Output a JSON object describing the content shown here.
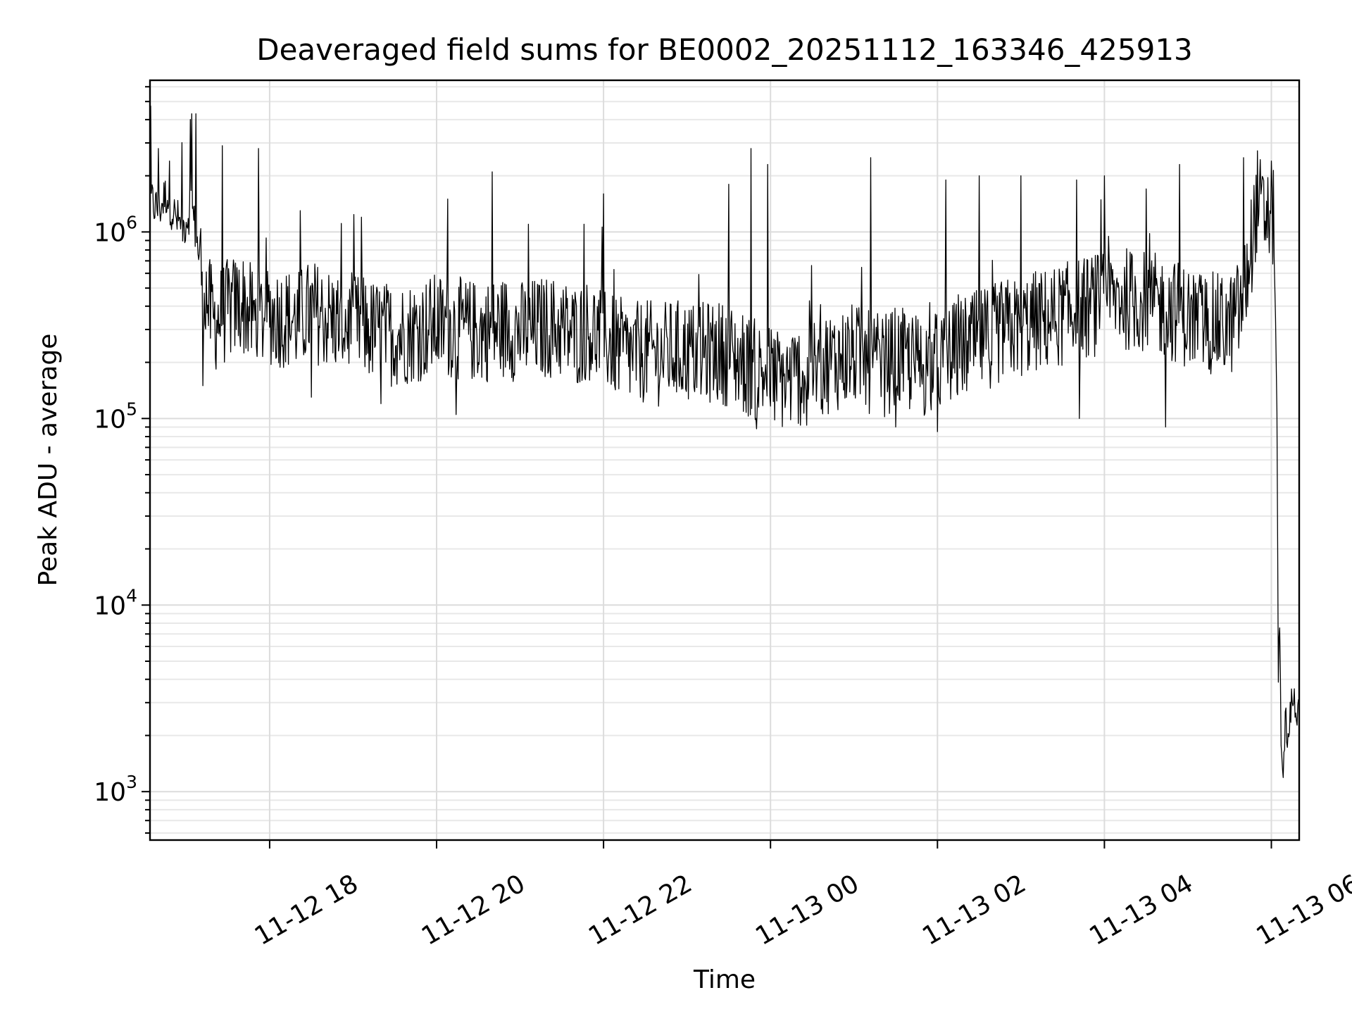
{
  "chart_data": {
    "type": "line",
    "title": "Deaveraged field sums for BE0002_20251112_163346_425913",
    "xlabel": "Time",
    "ylabel": "Peak ADU - average",
    "yscale": "log",
    "ylim": [
      550,
      6500000
    ],
    "xlim": [
      "2025-11-12 16:34",
      "2025-11-13 06:20"
    ],
    "grid": true,
    "x_ticks": [
      {
        "time": "2025-11-12 18:00",
        "label": "11-12 18"
      },
      {
        "time": "2025-11-12 20:00",
        "label": "11-12 20"
      },
      {
        "time": "2025-11-12 22:00",
        "label": "11-12 22"
      },
      {
        "time": "2025-11-13 00:00",
        "label": "11-13 00"
      },
      {
        "time": "2025-11-13 02:00",
        "label": "11-13 02"
      },
      {
        "time": "2025-11-13 04:00",
        "label": "11-13 04"
      },
      {
        "time": "2025-11-13 06:00",
        "label": "11-13 06"
      }
    ],
    "y_ticks": [
      {
        "value": 1000,
        "base": "10",
        "exp": "3"
      },
      {
        "value": 10000,
        "base": "10",
        "exp": "4"
      },
      {
        "value": 100000,
        "base": "10",
        "exp": "5"
      },
      {
        "value": 1000000,
        "base": "10",
        "exp": "6"
      }
    ],
    "series": [
      {
        "color": "#000000",
        "points": [
          [
            "2025-11-12 16:34",
            1500000
          ],
          [
            "2025-11-12 16:40",
            1300000
          ],
          [
            "2025-11-12 16:46",
            1600000
          ],
          [
            "2025-11-12 16:52",
            1200000
          ],
          [
            "2025-11-12 16:58",
            1050000
          ],
          [
            "2025-11-12 17:04",
            1400000
          ],
          [
            "2025-11-12 17:08",
            850000
          ],
          [
            "2025-11-12 17:12",
            600000
          ],
          [
            "2025-11-12 17:16",
            400000
          ],
          [
            "2025-11-12 17:20",
            330000
          ],
          [
            "2025-11-12 17:30",
            380000
          ],
          [
            "2025-11-12 17:40",
            420000
          ],
          [
            "2025-11-12 17:50",
            330000
          ],
          [
            "2025-11-12 18:00",
            360000
          ],
          [
            "2025-11-12 18:10",
            350000
          ],
          [
            "2025-11-12 18:20",
            330000
          ],
          [
            "2025-11-12 18:30",
            380000
          ],
          [
            "2025-11-12 18:40",
            350000
          ],
          [
            "2025-11-12 18:50",
            330000
          ],
          [
            "2025-11-12 19:00",
            320000
          ],
          [
            "2025-11-12 19:10",
            300000
          ],
          [
            "2025-11-12 19:20",
            290000
          ],
          [
            "2025-11-12 19:30",
            280000
          ],
          [
            "2025-11-12 19:40",
            290000
          ],
          [
            "2025-11-12 19:50",
            300000
          ],
          [
            "2025-11-12 20:00",
            320000
          ],
          [
            "2025-11-12 20:10",
            310000
          ],
          [
            "2025-11-12 20:20",
            300000
          ],
          [
            "2025-11-12 20:30",
            290000
          ],
          [
            "2025-11-12 20:40",
            300000
          ],
          [
            "2025-11-12 20:50",
            310000
          ],
          [
            "2025-11-12 21:00",
            290000
          ],
          [
            "2025-11-12 21:10",
            300000
          ],
          [
            "2025-11-12 21:20",
            310000
          ],
          [
            "2025-11-12 21:30",
            300000
          ],
          [
            "2025-11-12 21:40",
            280000
          ],
          [
            "2025-11-12 21:50",
            300000
          ],
          [
            "2025-11-12 22:00",
            270000
          ],
          [
            "2025-11-12 22:10",
            240000
          ],
          [
            "2025-11-12 22:20",
            220000
          ],
          [
            "2025-11-12 22:30",
            230000
          ],
          [
            "2025-11-12 22:40",
            220000
          ],
          [
            "2025-11-12 22:50",
            230000
          ],
          [
            "2025-11-12 23:00",
            230000
          ],
          [
            "2025-11-12 23:10",
            220000
          ],
          [
            "2025-11-12 23:20",
            230000
          ],
          [
            "2025-11-12 23:30",
            220000
          ],
          [
            "2025-11-12 23:40",
            200000
          ],
          [
            "2025-11-12 23:50",
            180000
          ],
          [
            "2025-11-13 00:00",
            170000
          ],
          [
            "2025-11-13 00:10",
            160000
          ],
          [
            "2025-11-13 00:20",
            170000
          ],
          [
            "2025-11-13 00:30",
            180000
          ],
          [
            "2025-11-13 00:40",
            200000
          ],
          [
            "2025-11-13 00:50",
            210000
          ],
          [
            "2025-11-13 01:00",
            220000
          ],
          [
            "2025-11-13 01:10",
            200000
          ],
          [
            "2025-11-13 01:20",
            190000
          ],
          [
            "2025-11-13 01:30",
            210000
          ],
          [
            "2025-11-13 01:40",
            200000
          ],
          [
            "2025-11-13 01:50",
            190000
          ],
          [
            "2025-11-13 02:00",
            200000
          ],
          [
            "2025-11-13 02:10",
            220000
          ],
          [
            "2025-11-13 02:20",
            240000
          ],
          [
            "2025-11-13 02:30",
            260000
          ],
          [
            "2025-11-13 02:40",
            280000
          ],
          [
            "2025-11-13 02:50",
            300000
          ],
          [
            "2025-11-13 03:00",
            310000
          ],
          [
            "2025-11-13 03:10",
            330000
          ],
          [
            "2025-11-13 03:20",
            340000
          ],
          [
            "2025-11-13 03:30",
            360000
          ],
          [
            "2025-11-13 03:40",
            380000
          ],
          [
            "2025-11-13 03:50",
            400000
          ],
          [
            "2025-11-13 04:00",
            420000
          ],
          [
            "2025-11-13 04:10",
            450000
          ],
          [
            "2025-11-13 04:20",
            430000
          ],
          [
            "2025-11-13 04:30",
            420000
          ],
          [
            "2025-11-13 04:40",
            400000
          ],
          [
            "2025-11-13 04:50",
            380000
          ],
          [
            "2025-11-13 05:00",
            350000
          ],
          [
            "2025-11-13 05:10",
            330000
          ],
          [
            "2025-11-13 05:20",
            320000
          ],
          [
            "2025-11-13 05:30",
            310000
          ],
          [
            "2025-11-13 05:40",
            420000
          ],
          [
            "2025-11-13 05:50",
            1500000
          ],
          [
            "2025-11-13 05:54",
            1200000
          ],
          [
            "2025-11-13 05:58",
            1300000
          ],
          [
            "2025-11-13 06:02",
            900000
          ],
          [
            "2025-11-13 06:04",
            120000
          ],
          [
            "2025-11-13 06:05",
            4000
          ],
          [
            "2025-11-13 06:06",
            8500
          ],
          [
            "2025-11-13 06:07",
            1500
          ],
          [
            "2025-11-13 06:08",
            1200
          ],
          [
            "2025-11-13 06:10",
            2500
          ],
          [
            "2025-11-13 06:12",
            1800
          ],
          [
            "2025-11-13 06:14",
            2800
          ],
          [
            "2025-11-13 06:16",
            3200
          ],
          [
            "2025-11-13 06:18",
            2600
          ],
          [
            "2025-11-13 06:20",
            3500
          ]
        ],
        "spikes": [
          [
            "2025-11-12 16:40",
            2800000
          ],
          [
            "2025-11-12 16:48",
            2400000
          ],
          [
            "2025-11-12 17:04",
            4300000
          ],
          [
            "2025-11-12 17:07",
            4300000
          ],
          [
            "2025-11-12 17:26",
            2900000
          ],
          [
            "2025-11-12 17:52",
            2800000
          ],
          [
            "2025-11-12 18:22",
            1300000
          ],
          [
            "2025-11-12 19:06",
            1200000
          ],
          [
            "2025-11-12 20:08",
            1500000
          ],
          [
            "2025-11-12 20:40",
            2100000
          ],
          [
            "2025-11-12 21:06",
            1100000
          ],
          [
            "2025-11-12 21:46",
            1100000
          ],
          [
            "2025-11-12 22:00",
            1600000
          ],
          [
            "2025-11-12 23:30",
            1800000
          ],
          [
            "2025-11-12 23:46",
            2800000
          ],
          [
            "2025-11-12 23:58",
            2300000
          ],
          [
            "2025-11-13 01:12",
            2500000
          ],
          [
            "2025-11-13 02:06",
            1900000
          ],
          [
            "2025-11-13 02:30",
            2000000
          ],
          [
            "2025-11-13 03:00",
            2000000
          ],
          [
            "2025-11-13 03:40",
            1900000
          ],
          [
            "2025-11-13 04:00",
            2000000
          ],
          [
            "2025-11-13 04:30",
            1700000
          ],
          [
            "2025-11-13 04:54",
            2300000
          ],
          [
            "2025-11-13 05:40",
            2500000
          ],
          [
            "2025-11-13 06:00",
            2400000
          ]
        ],
        "dips": [
          [
            "2025-11-12 17:12",
            150000
          ],
          [
            "2025-11-12 18:30",
            130000
          ],
          [
            "2025-11-12 19:20",
            120000
          ],
          [
            "2025-11-12 20:14",
            105000
          ],
          [
            "2025-11-12 22:00",
            120000
          ],
          [
            "2025-11-12 23:50",
            88000
          ],
          [
            "2025-11-13 00:26",
            92000
          ],
          [
            "2025-11-13 01:30",
            90000
          ],
          [
            "2025-11-13 02:00",
            85000
          ],
          [
            "2025-11-13 03:42",
            100000
          ],
          [
            "2025-11-13 04:44",
            90000
          ]
        ]
      }
    ]
  }
}
